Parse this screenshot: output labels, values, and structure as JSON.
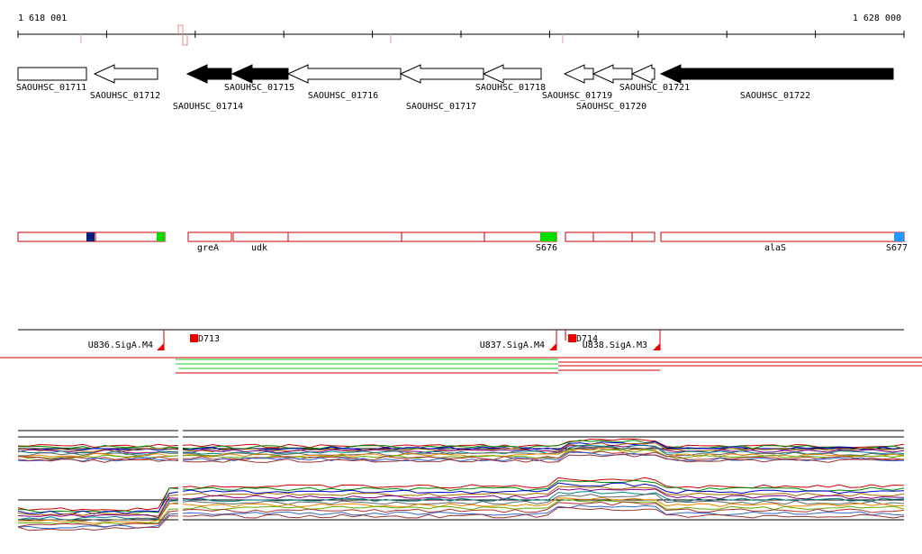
{
  "axis": {
    "start": "1 618 001",
    "end": "1 628 000"
  },
  "genes": [
    {
      "label": "SAOUHSC_01711"
    },
    {
      "label": "SAOUHSC_01712"
    },
    {
      "label": "SAOUHSC_01714"
    },
    {
      "label": "SAOUHSC_01715"
    },
    {
      "label": "SAOUHSC_01716"
    },
    {
      "label": "SAOUHSC_01717"
    },
    {
      "label": "SAOUHSC_01718"
    },
    {
      "label": "SAOUHSC_01719"
    },
    {
      "label": "SAOUHSC_01720"
    },
    {
      "label": "SAOUHSC_01721"
    },
    {
      "label": "SAOUHSC_01722"
    }
  ],
  "operons": [
    {
      "label": "greA"
    },
    {
      "label": "udk"
    },
    {
      "label": "S676"
    },
    {
      "label": "alaS"
    },
    {
      "label": "S677"
    }
  ],
  "promoters": [
    {
      "label": "U836.SigA.M4"
    },
    {
      "label": "D713"
    },
    {
      "label": "U837.SigA.M4"
    },
    {
      "label": "D714"
    },
    {
      "label": "U838.SigA.M3"
    }
  ]
}
